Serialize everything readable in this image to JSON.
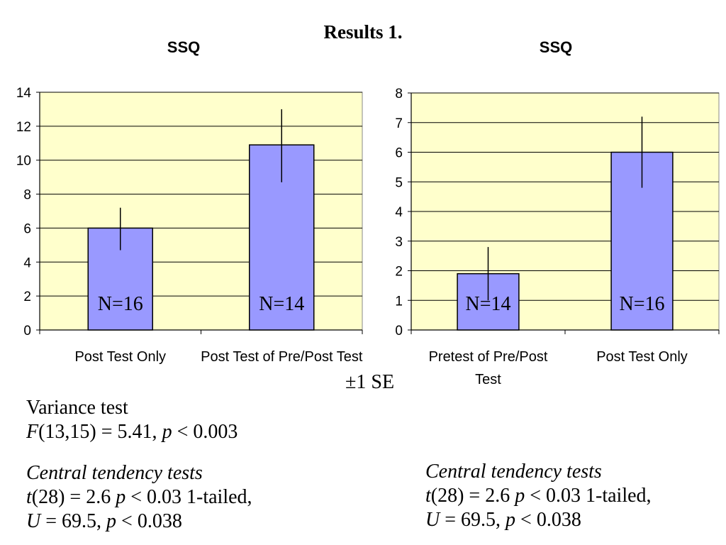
{
  "slide": {
    "title": "Results 1.",
    "se_note": "±1 SE"
  },
  "stats": {
    "variance": {
      "heading": "Variance test",
      "stat_symbol": "F",
      "stat_rest": "(13,15) = 5.41, ",
      "p_symbol": "p",
      "p_rest": " < 0.003"
    },
    "central_left": {
      "heading": "Central tendency tests",
      "t_symbol": "t",
      "t_mid": "(28) = 2.6 ",
      "t_p": "p",
      "t_rest": " < 0.03 1-tailed,",
      "u_symbol": "U",
      "u_mid": " = 69.5, ",
      "u_p": "p",
      "u_rest": " < 0.038"
    },
    "central_right": {
      "heading": "Central tendency tests",
      "t_symbol": "t",
      "t_mid": "(28) = 2.6 ",
      "t_p": "p",
      "t_rest": " < 0.03 1-tailed,",
      "u_symbol": "U",
      "u_mid": " = 69.5, ",
      "u_p": "p",
      "u_rest": " < 0.038"
    }
  },
  "chart_data": [
    {
      "type": "bar",
      "title": "SSQ",
      "categories": [
        "Post Test Only",
        "Post Test of Pre/Post Test"
      ],
      "values": [
        6,
        10.9
      ],
      "error_low": [
        4.7,
        8.7
      ],
      "error_high": [
        7.2,
        13.0
      ],
      "bar_labels": [
        "N=16",
        "N=14"
      ],
      "ylim": [
        0,
        14
      ],
      "yticks": [
        0,
        2,
        4,
        6,
        8,
        10,
        12,
        14
      ],
      "grid": true,
      "legend": "none",
      "plot_background": "#ffffcc",
      "bar_color": "#9999ff"
    },
    {
      "type": "bar",
      "title": "SSQ",
      "categories": [
        "Pretest of Pre/Post Test",
        "Post Test Only"
      ],
      "values": [
        1.9,
        6
      ],
      "error_low": [
        1.0,
        4.8
      ],
      "error_high": [
        2.8,
        7.2
      ],
      "bar_labels": [
        "N=14",
        "N=16"
      ],
      "ylim": [
        0,
        8
      ],
      "yticks": [
        0,
        1,
        2,
        3,
        4,
        5,
        6,
        7,
        8
      ],
      "grid": true,
      "legend": "none",
      "plot_background": "#ffffcc",
      "bar_color": "#9999ff"
    }
  ]
}
